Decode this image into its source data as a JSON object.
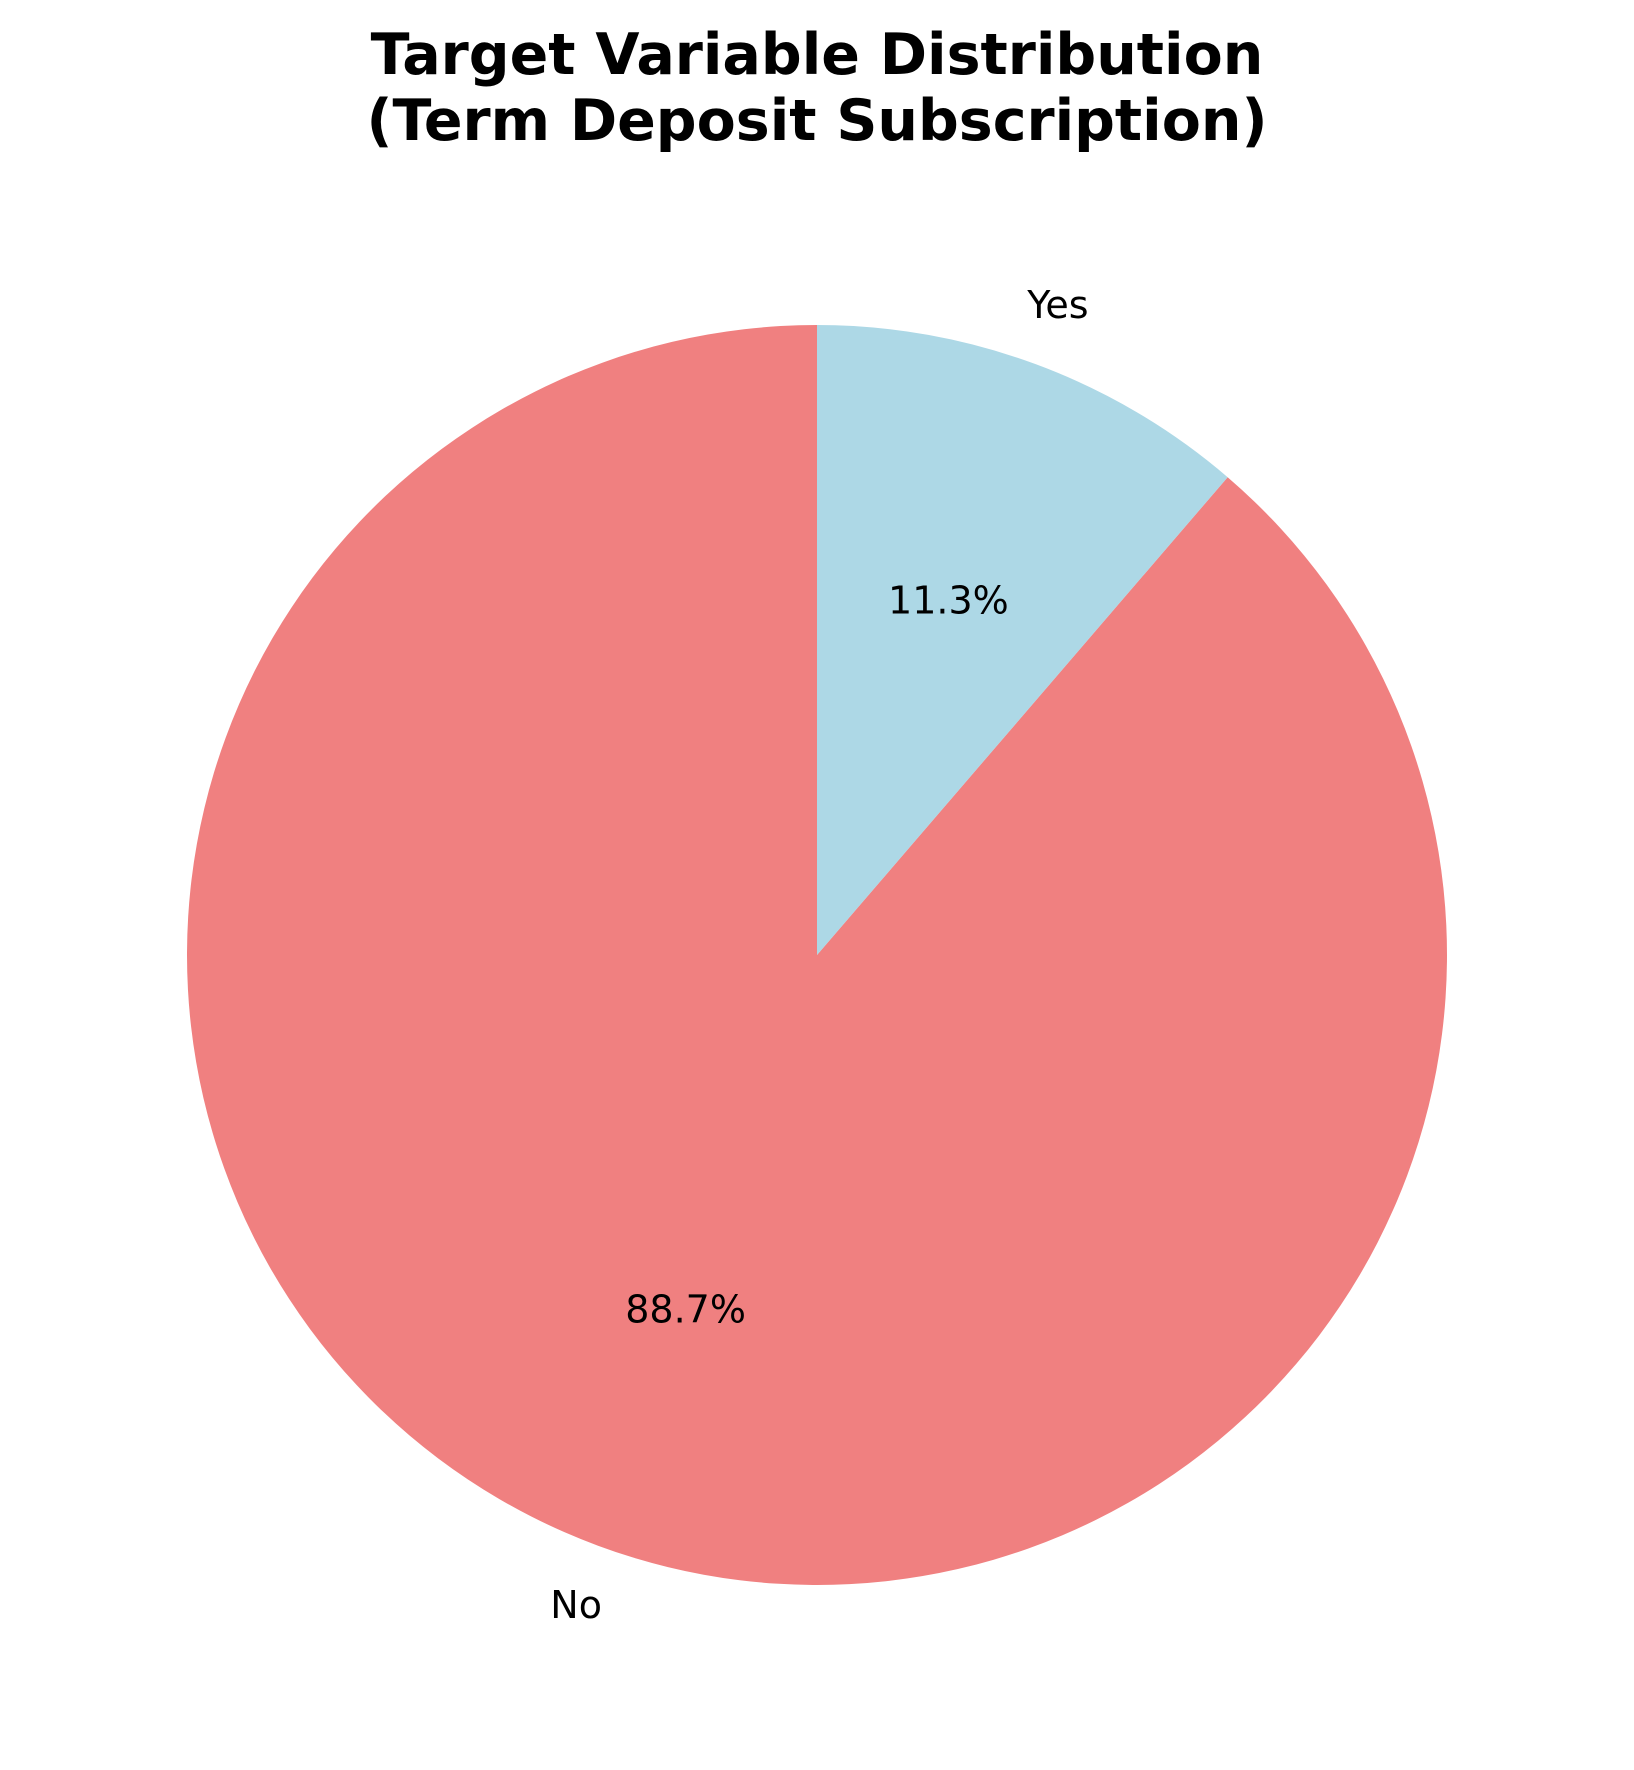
{
  "chart_data": {
    "type": "pie",
    "title_lines": [
      "Target Variable Distribution",
      "(Term Deposit Subscription)"
    ],
    "start_angle_deg": 90,
    "direction": "counterclockwise",
    "slices": [
      {
        "label": "No",
        "value": 88.7,
        "pct_label": "88.7%",
        "color": "#f08080"
      },
      {
        "label": "Yes",
        "value": 11.3,
        "pct_label": "11.3%",
        "color": "#add8e6"
      }
    ]
  }
}
